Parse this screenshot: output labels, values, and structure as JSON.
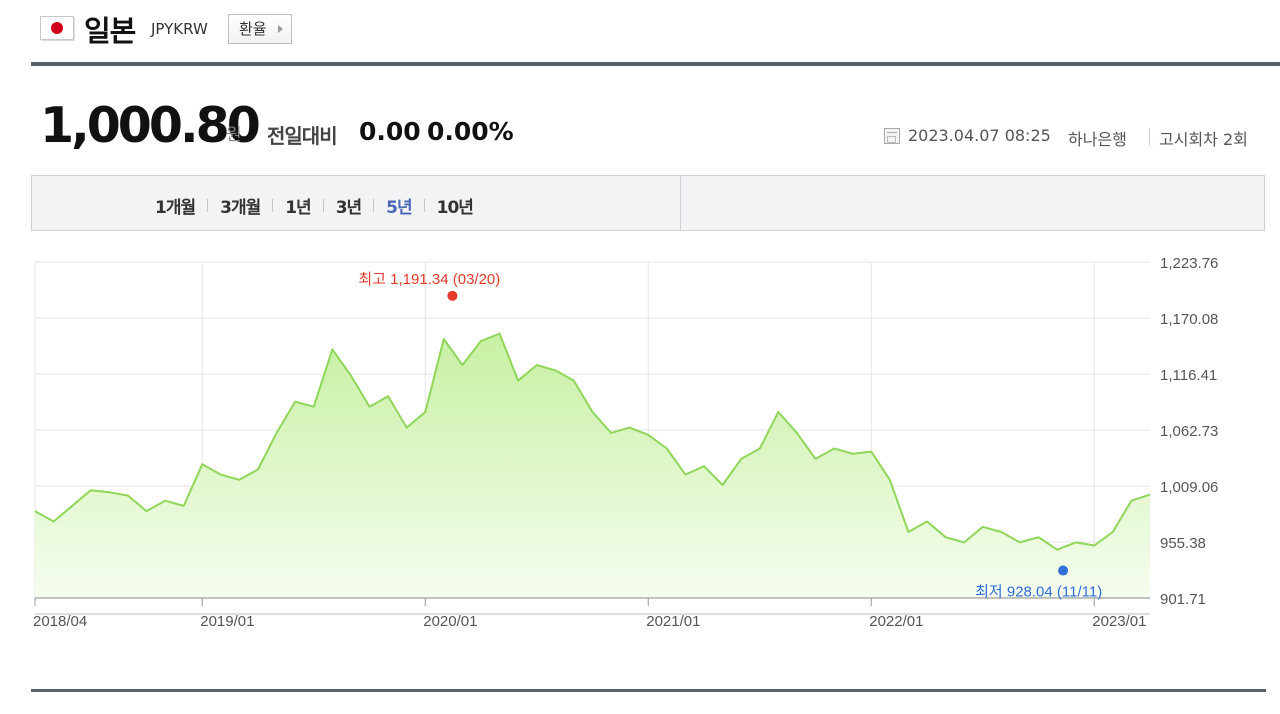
{
  "header": {
    "country": "일본",
    "code": "JPYKRW",
    "exchange_button": "환율"
  },
  "quote": {
    "price": "1,000.80",
    "unit": "원",
    "compare_label": "전일대비",
    "change": "0.00",
    "change_pct": "0.00%",
    "datetime": "2023.04.07 08:25",
    "bank": "하나은행",
    "notice_round": "고시회차 2회"
  },
  "period_tabs": [
    {
      "label": "1개월",
      "active": false
    },
    {
      "label": "3개월",
      "active": false
    },
    {
      "label": "1년",
      "active": false
    },
    {
      "label": "3년",
      "active": false
    },
    {
      "label": "5년",
      "active": true
    },
    {
      "label": "10년",
      "active": false
    }
  ],
  "colors": {
    "line": "#8fd65a",
    "fill_top": "#c7f0a2",
    "fill_bottom": "#f6fdf0",
    "high": "#e43b2c",
    "low": "#2f6fd6",
    "active_tab": "#4a66b8"
  },
  "chart_data": {
    "type": "area",
    "title": "",
    "xlabel": "",
    "ylabel": "",
    "x_ticks": [
      "2018/04",
      "2019/01",
      "2020/01",
      "2021/01",
      "2022/01",
      "2023/01"
    ],
    "y_ticks": [
      "1,223.76",
      "1,170.08",
      "1,116.41",
      "1,062.73",
      "1,009.06",
      "955.38",
      "901.71"
    ],
    "ylim": [
      901.71,
      1223.76
    ],
    "xlim": [
      "2018/04",
      "2023/04"
    ],
    "grid": true,
    "high": {
      "label": "최고",
      "value": "1,191.34",
      "date": "03/20",
      "date_value": "2020/03"
    },
    "low": {
      "label": "최저",
      "value": "928.04",
      "date": "11/11",
      "date_value": "2022/11"
    },
    "series": [
      {
        "x": [
          "2018/04",
          "2018/05",
          "2018/06",
          "2018/07",
          "2018/08",
          "2018/09",
          "2018/10",
          "2018/11",
          "2018/12",
          "2019/01",
          "2019/02",
          "2019/03",
          "2019/04",
          "2019/05",
          "2019/06",
          "2019/07",
          "2019/08",
          "2019/09",
          "2019/10",
          "2019/11",
          "2019/12",
          "2020/01",
          "2020/02",
          "2020/03",
          "2020/04",
          "2020/05",
          "2020/06",
          "2020/07",
          "2020/08",
          "2020/09",
          "2020/10",
          "2020/11",
          "2020/12",
          "2021/01",
          "2021/02",
          "2021/03",
          "2021/04",
          "2021/05",
          "2021/06",
          "2021/07",
          "2021/08",
          "2021/09",
          "2021/10",
          "2021/11",
          "2021/12",
          "2022/01",
          "2022/02",
          "2022/03",
          "2022/04",
          "2022/05",
          "2022/06",
          "2022/07",
          "2022/08",
          "2022/09",
          "2022/10",
          "2022/11",
          "2022/12",
          "2023/01",
          "2023/02",
          "2023/03",
          "2023/04"
        ],
        "values": [
          985,
          975,
          990,
          1005,
          1003,
          1000,
          985,
          995,
          990,
          1030,
          1020,
          1015,
          1025,
          1060,
          1090,
          1085,
          1140,
          1115,
          1085,
          1095,
          1065,
          1080,
          1150,
          1125,
          1148,
          1155,
          1110,
          1125,
          1120,
          1110,
          1080,
          1060,
          1065,
          1058,
          1045,
          1020,
          1028,
          1010,
          1035,
          1045,
          1080,
          1060,
          1035,
          1045,
          1040,
          1042,
          1015,
          965,
          975,
          960,
          955,
          970,
          965,
          955,
          960,
          948,
          955,
          952,
          965,
          995,
          1000.8
        ]
      }
    ]
  }
}
